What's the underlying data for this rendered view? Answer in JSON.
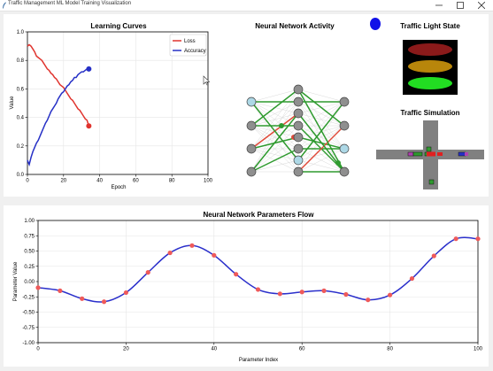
{
  "window": {
    "title": "Traffic Management ML Model Training Visualization"
  },
  "colors": {
    "loss": "#e0342e",
    "accuracy": "#2630c6",
    "param_line": "#2a2fcb",
    "param_points": "#ef5a5a",
    "nn_green": "#2e9a2e",
    "nn_red": "#e04a3a",
    "indicator": "#1212e8",
    "light_red": "#8b1a1a",
    "light_yellow": "#b8860b",
    "light_green": "#22dd22"
  },
  "panels": {
    "nn_activity": {
      "title": "Neural Network Activity"
    },
    "traffic_light": {
      "title": "Traffic Light State",
      "active": "green"
    },
    "traffic_sim": {
      "title": "Traffic Simulation"
    }
  },
  "chart_data": [
    {
      "type": "line",
      "title": "Learning Curves",
      "xlabel": "Epoch",
      "ylabel": "Value",
      "xlim": [
        0,
        100
      ],
      "ylim": [
        0,
        1.0
      ],
      "xticks": [
        0,
        20,
        40,
        60,
        80,
        100
      ],
      "yticks": [
        0.0,
        0.2,
        0.4,
        0.6,
        0.8,
        1.0
      ],
      "legend": "top-right",
      "grid": true,
      "series": [
        {
          "name": "Loss",
          "x": [
            0,
            1,
            2,
            3,
            4,
            5,
            6,
            7,
            8,
            9,
            10,
            11,
            12,
            13,
            14,
            15,
            16,
            17,
            18,
            19,
            20,
            21,
            22,
            23,
            24,
            25,
            26,
            27,
            28,
            29,
            30,
            31,
            32,
            33,
            34
          ],
          "values": [
            0.9,
            0.91,
            0.9,
            0.88,
            0.86,
            0.83,
            0.82,
            0.81,
            0.8,
            0.78,
            0.76,
            0.74,
            0.73,
            0.71,
            0.7,
            0.68,
            0.67,
            0.65,
            0.63,
            0.62,
            0.61,
            0.59,
            0.57,
            0.55,
            0.53,
            0.52,
            0.5,
            0.48,
            0.46,
            0.45,
            0.43,
            0.41,
            0.39,
            0.38,
            0.34
          ]
        },
        {
          "name": "Accuracy",
          "x": [
            0,
            1,
            2,
            3,
            4,
            5,
            6,
            7,
            8,
            9,
            10,
            11,
            12,
            13,
            14,
            15,
            16,
            17,
            18,
            19,
            20,
            21,
            22,
            23,
            24,
            25,
            26,
            27,
            28,
            29,
            30,
            31,
            32,
            33,
            34
          ],
          "values": [
            0.1,
            0.07,
            0.12,
            0.16,
            0.19,
            0.22,
            0.24,
            0.27,
            0.3,
            0.33,
            0.36,
            0.38,
            0.41,
            0.44,
            0.46,
            0.48,
            0.5,
            0.53,
            0.55,
            0.57,
            0.58,
            0.6,
            0.62,
            0.63,
            0.65,
            0.66,
            0.68,
            0.68,
            0.7,
            0.71,
            0.72,
            0.72,
            0.73,
            0.74,
            0.74
          ]
        }
      ]
    },
    {
      "type": "line",
      "title": "Neural Network Parameters Flow",
      "xlabel": "Parameter Index",
      "ylabel": "Parameter Value",
      "xlim": [
        0,
        100
      ],
      "ylim": [
        -1.0,
        1.0
      ],
      "xticks": [
        0,
        20,
        40,
        60,
        80,
        100
      ],
      "yticks": [
        -1.0,
        -0.75,
        -0.5,
        -0.25,
        0.0,
        0.25,
        0.5,
        0.75,
        1.0
      ],
      "grid": true,
      "series": [
        {
          "x": [
            0,
            5,
            10,
            15,
            20,
            25,
            30,
            35,
            40,
            45,
            50,
            55,
            60,
            65,
            70,
            75,
            80,
            85,
            90,
            95,
            100
          ],
          "values": [
            -0.1,
            -0.15,
            -0.28,
            -0.33,
            -0.18,
            0.15,
            0.47,
            0.59,
            0.43,
            0.12,
            -0.13,
            -0.2,
            -0.17,
            -0.15,
            -0.21,
            -0.3,
            -0.22,
            0.05,
            0.42,
            0.7,
            0.7
          ]
        }
      ]
    }
  ]
}
